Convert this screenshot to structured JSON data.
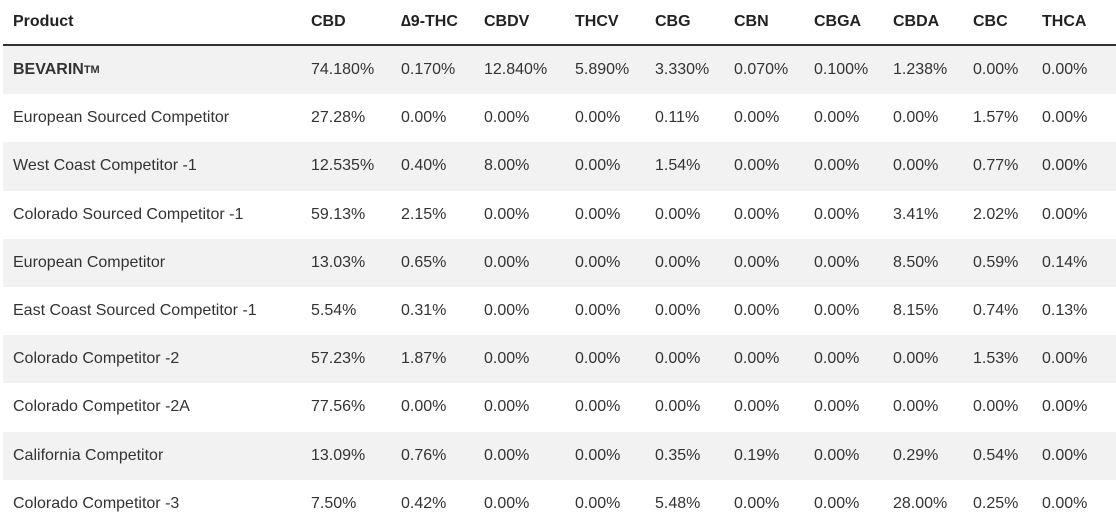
{
  "table": {
    "header": [
      "Product",
      "CBD",
      "∆9-THC",
      "CBDV",
      "THCV",
      "CBG",
      "CBN",
      "CBGA",
      "CBDA",
      "CBC",
      "THCA"
    ],
    "rows": [
      {
        "product": "BEVARIN",
        "superscript": "TM",
        "values": [
          "74.180%",
          "0.170%",
          "12.840%",
          "5.890%",
          "3.330%",
          "0.070%",
          "0.100%",
          "1.238%",
          "0.00%",
          "0.00%"
        ]
      },
      {
        "product": "European Sourced Competitor",
        "values": [
          "27.28%",
          "0.00%",
          "0.00%",
          "0.00%",
          "0.11%",
          "0.00%",
          "0.00%",
          "0.00%",
          "1.57%",
          "0.00%"
        ]
      },
      {
        "product": "West Coast Competitor -1",
        "values": [
          "12.535%",
          "0.40%",
          "8.00%",
          "0.00%",
          "1.54%",
          "0.00%",
          "0.00%",
          "0.00%",
          "0.77%",
          "0.00%"
        ]
      },
      {
        "product": "Colorado Sourced Competitor -1",
        "values": [
          "59.13%",
          "2.15%",
          "0.00%",
          "0.00%",
          "0.00%",
          "0.00%",
          "0.00%",
          "3.41%",
          "2.02%",
          "0.00%"
        ]
      },
      {
        "product": "European Competitor",
        "values": [
          "13.03%",
          "0.65%",
          "0.00%",
          "0.00%",
          "0.00%",
          "0.00%",
          "0.00%",
          "8.50%",
          "0.59%",
          "0.14%"
        ]
      },
      {
        "product": "East Coast Sourced Competitor -1",
        "values": [
          "5.54%",
          "0.31%",
          "0.00%",
          "0.00%",
          "0.00%",
          "0.00%",
          "0.00%",
          "8.15%",
          "0.74%",
          "0.13%"
        ]
      },
      {
        "product": "Colorado Competitor -2",
        "values": [
          "57.23%",
          "1.87%",
          "0.00%",
          "0.00%",
          "0.00%",
          "0.00%",
          "0.00%",
          "0.00%",
          "1.53%",
          "0.00%"
        ]
      },
      {
        "product": "Colorado Competitor -2A",
        "values": [
          "77.56%",
          "0.00%",
          "0.00%",
          "0.00%",
          "0.00%",
          "0.00%",
          "0.00%",
          "0.00%",
          "0.00%",
          "0.00%"
        ]
      },
      {
        "product": "California Competitor",
        "values": [
          "13.09%",
          "0.76%",
          "0.00%",
          "0.00%",
          "0.35%",
          "0.19%",
          "0.00%",
          "0.29%",
          "0.54%",
          "0.00%"
        ]
      },
      {
        "product": "Colorado Competitor -3",
        "values": [
          "7.50%",
          "0.42%",
          "0.00%",
          "0.00%",
          "5.48%",
          "0.00%",
          "0.00%",
          "28.00%",
          "0.25%",
          "0.00%"
        ]
      }
    ]
  }
}
